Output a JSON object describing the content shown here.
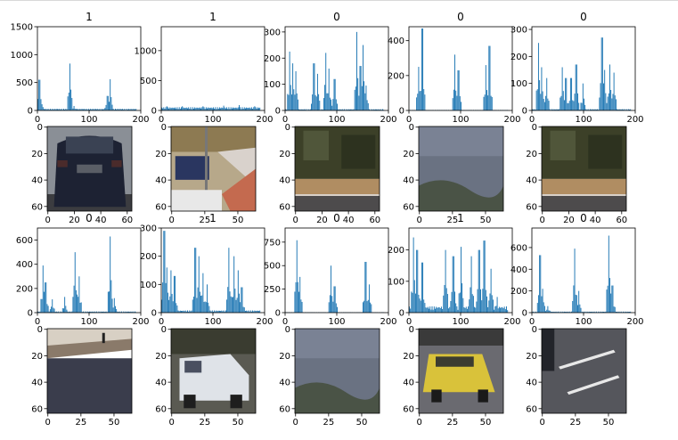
{
  "chart_data": {
    "type": "grid-of-histograms-and-images",
    "rows": [
      {
        "kind": "histogram",
        "panels": [
          {
            "title": "1",
            "xlim": [
              0,
              200
            ],
            "ylim": [
              0,
              1500
            ],
            "xticks": [
              0,
              100,
              200
            ],
            "yticks": [
              0,
              500,
              1000,
              1500
            ],
            "peaks": [
              [
                3,
                550
              ],
              [
                10,
                60
              ],
              [
                62,
                840
              ],
              [
                70,
                80
              ],
              [
                135,
                260
              ],
              [
                140,
                560
              ],
              [
                150,
                30
              ]
            ],
            "base": 30
          },
          {
            "title": "1",
            "xlim": [
              0,
              200
            ],
            "ylim": [
              0,
              1400
            ],
            "xticks": [
              0,
              100,
              200
            ],
            "yticks": [
              0,
              500,
              1000
            ],
            "peaks": [
              [
                10,
                70
              ],
              [
                40,
                70
              ],
              [
                80,
                70
              ],
              [
                120,
                80
              ],
              [
                150,
                90
              ],
              [
                180,
                70
              ]
            ],
            "base": 55
          },
          {
            "title": "0",
            "xlim": [
              0,
              200
            ],
            "ylim": [
              0,
              320
            ],
            "xticks": [
              0,
              100,
              200
            ],
            "yticks": [
              0,
              100,
              200,
              300
            ],
            "peaks": [
              [
                8,
                225
              ],
              [
                14,
                180
              ],
              [
                20,
                150
              ],
              [
                55,
                180
              ],
              [
                62,
                140
              ],
              [
                78,
                220
              ],
              [
                84,
                160
              ],
              [
                95,
                120
              ],
              [
                138,
                300
              ],
              [
                145,
                170
              ],
              [
                150,
                250
              ],
              [
                156,
                95
              ]
            ],
            "base": 5
          },
          {
            "title": "0",
            "xlim": [
              0,
              200
            ],
            "ylim": [
              0,
              480
            ],
            "xticks": [
              0,
              100,
              200
            ],
            "yticks": [
              0,
              200,
              400
            ],
            "peaks": [
              [
                18,
                250
              ],
              [
                25,
                470
              ],
              [
                88,
                320
              ],
              [
                95,
                230
              ],
              [
                148,
                260
              ],
              [
                155,
                370
              ]
            ],
            "base": 3
          },
          {
            "title": "0",
            "xlim": [
              0,
              200
            ],
            "ylim": [
              0,
              310
            ],
            "xticks": [
              0,
              100,
              200
            ],
            "yticks": [
              0,
              100,
              200,
              300
            ],
            "peaks": [
              [
                12,
                250
              ],
              [
                18,
                160
              ],
              [
                28,
                120
              ],
              [
                58,
                160
              ],
              [
                65,
                120
              ],
              [
                75,
                120
              ],
              [
                85,
                170
              ],
              [
                98,
                100
              ],
              [
                135,
                270
              ],
              [
                140,
                150
              ],
              [
                150,
                170
              ],
              [
                158,
                140
              ]
            ],
            "base": 5
          }
        ]
      },
      {
        "kind": "image",
        "panels": [
          {
            "xticks": [
              0,
              20,
              40,
              60
            ],
            "yticks": [
              0,
              20,
              40,
              60
            ],
            "scene": "dark-car-rear"
          },
          {
            "xticks": [
              0,
              25,
              50
            ],
            "yticks": [
              0,
              20,
              40,
              60
            ],
            "scene": "street-cars"
          },
          {
            "xticks": [
              0,
              20,
              40,
              60
            ],
            "yticks": [
              0,
              20,
              40,
              60
            ],
            "scene": "trees-road"
          },
          {
            "xticks": [
              0,
              25,
              50
            ],
            "yticks": [
              0,
              20,
              40,
              60
            ],
            "scene": "hazy-hill"
          },
          {
            "xticks": [
              0,
              20,
              40,
              60
            ],
            "yticks": [
              0,
              20,
              40,
              60
            ],
            "scene": "trees-road"
          }
        ]
      },
      {
        "kind": "histogram",
        "panels": [
          {
            "title": "0",
            "xlim": [
              0,
              200
            ],
            "ylim": [
              0,
              700
            ],
            "xticks": [
              0,
              100,
              200
            ],
            "yticks": [
              0,
              200,
              400,
              600
            ],
            "peaks": [
              [
                10,
                390
              ],
              [
                15,
                250
              ],
              [
                28,
                110
              ],
              [
                52,
                130
              ],
              [
                72,
                500
              ],
              [
                80,
                300
              ],
              [
                140,
                630
              ],
              [
                148,
                120
              ]
            ],
            "base": 10
          },
          {
            "title": "1",
            "xlim": [
              0,
              200
            ],
            "ylim": [
              0,
              300
            ],
            "xticks": [
              0,
              100,
              200
            ],
            "yticks": [
              0,
              100,
              200,
              300
            ],
            "peaks": [
              [
                5,
                290
              ],
              [
                10,
                160
              ],
              [
                18,
                150
              ],
              [
                25,
                130
              ],
              [
                65,
                230
              ],
              [
                72,
                200
              ],
              [
                80,
                140
              ],
              [
                88,
                100
              ],
              [
                130,
                230
              ],
              [
                140,
                200
              ],
              [
                148,
                150
              ],
              [
                155,
                90
              ]
            ],
            "base": 8
          },
          {
            "title": "0",
            "xlim": [
              0,
              200
            ],
            "ylim": [
              0,
              900
            ],
            "xticks": [
              0,
              100,
              200
            ],
            "yticks": [
              0,
              250,
              500,
              750
            ],
            "peaks": [
              [
                22,
                770
              ],
              [
                28,
                380
              ],
              [
                88,
                500
              ],
              [
                95,
                280
              ],
              [
                155,
                540
              ],
              [
                162,
                300
              ]
            ],
            "base": 5
          },
          {
            "title": "1",
            "xlim": [
              0,
              200
            ],
            "ylim": [
              0,
              270
            ],
            "xticks": [
              0,
              100,
              200
            ],
            "yticks": [
              0,
              100,
              200
            ],
            "peaks": [
              [
                8,
                240
              ],
              [
                15,
                200
              ],
              [
                25,
                160
              ],
              [
                70,
                200
              ],
              [
                85,
                180
              ],
              [
                100,
                210
              ],
              [
                120,
                180
              ],
              [
                135,
                200
              ],
              [
                145,
                230
              ],
              [
                158,
                140
              ],
              [
                170,
                50
              ]
            ],
            "base": 20
          },
          {
            "title": "0",
            "xlim": [
              0,
              200
            ],
            "ylim": [
              0,
              780
            ],
            "xticks": [
              0,
              100,
              200
            ],
            "yticks": [
              0,
              200,
              400,
              600
            ],
            "peaks": [
              [
                15,
                530
              ],
              [
                20,
                220
              ],
              [
                30,
                60
              ],
              [
                82,
                590
              ],
              [
                90,
                200
              ],
              [
                148,
                710
              ],
              [
                155,
                250
              ]
            ],
            "base": 10
          }
        ]
      },
      {
        "kind": "image",
        "panels": [
          {
            "xticks": [
              0,
              25,
              50
            ],
            "yticks": [
              0,
              20,
              40,
              60
            ],
            "scene": "wall"
          },
          {
            "xticks": [
              0,
              25,
              50
            ],
            "yticks": [
              0,
              20,
              40,
              60
            ],
            "scene": "white-van"
          },
          {
            "xticks": [
              0,
              25,
              50
            ],
            "yticks": [
              0,
              20,
              40,
              60
            ],
            "scene": "hazy-hill"
          },
          {
            "xticks": [
              0,
              25,
              50
            ],
            "yticks": [
              0,
              20,
              40,
              60
            ],
            "scene": "yellow-car"
          },
          {
            "xticks": [
              0,
              25,
              50
            ],
            "yticks": [
              0,
              20,
              40,
              60
            ],
            "scene": "road-lines"
          }
        ]
      }
    ]
  }
}
